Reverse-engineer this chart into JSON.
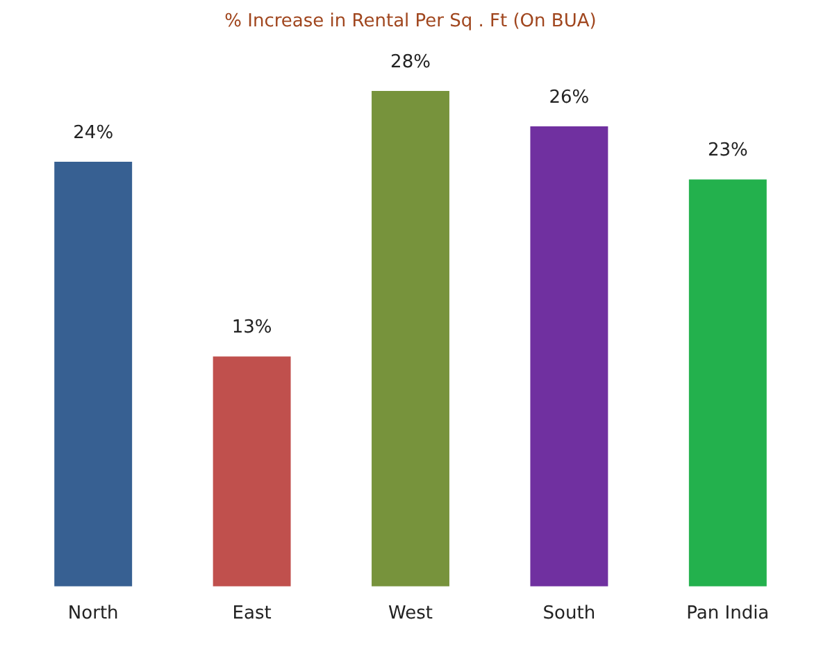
{
  "chart_data": {
    "type": "bar",
    "title": "% Increase in Rental Per Sq . Ft (On BUA)",
    "categories": [
      "North",
      "East",
      "West",
      "South",
      "Pan India"
    ],
    "values": [
      24,
      13,
      28,
      26,
      23
    ],
    "colors": [
      "#376092",
      "#c0504d",
      "#77933c",
      "#7030a0",
      "#23b14d"
    ],
    "value_labels": [
      "24%",
      "13%",
      "28%",
      "26%",
      "23%"
    ],
    "grid": false,
    "legend": false
  }
}
